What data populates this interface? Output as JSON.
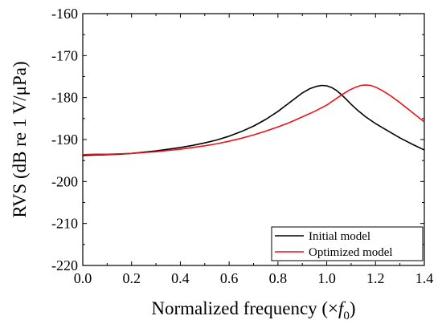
{
  "chart_data": {
    "type": "line",
    "title": "",
    "xlabel_main": "Normalized frequency (×",
    "xlabel_var": "f",
    "xlabel_sub": "0",
    "xlabel_close": ")",
    "ylabel": "RVS (dB re 1 V/μPa)",
    "xlim": [
      0.0,
      1.4
    ],
    "ylim": [
      -220,
      -160
    ],
    "x_ticks": [
      "0.0",
      "0.2",
      "0.4",
      "0.6",
      "0.8",
      "1.0",
      "1.2",
      "1.4"
    ],
    "y_ticks": [
      "-160",
      "-170",
      "-180",
      "-190",
      "-200",
      "-210",
      "-220"
    ],
    "grid": false,
    "legend_position": "bottom-right",
    "series": [
      {
        "name": "Initial model",
        "color": "#000000",
        "x": [
          0.0,
          0.05,
          0.1,
          0.15,
          0.2,
          0.25,
          0.3,
          0.35,
          0.4,
          0.45,
          0.5,
          0.55,
          0.6,
          0.65,
          0.7,
          0.75,
          0.8,
          0.85,
          0.9,
          0.93,
          0.96,
          0.98,
          1.0,
          1.02,
          1.04,
          1.06,
          1.08,
          1.1,
          1.13,
          1.16,
          1.2,
          1.25,
          1.3,
          1.35,
          1.4
        ],
        "y": [
          -193.8,
          -193.7,
          -193.6,
          -193.5,
          -193.3,
          -193.0,
          -192.7,
          -192.3,
          -191.9,
          -191.4,
          -190.8,
          -190.1,
          -189.2,
          -188.1,
          -186.8,
          -185.2,
          -183.3,
          -181.1,
          -178.9,
          -177.9,
          -177.3,
          -177.1,
          -177.2,
          -177.6,
          -178.3,
          -179.3,
          -180.4,
          -181.6,
          -183.2,
          -184.6,
          -186.2,
          -187.9,
          -189.6,
          -191.1,
          -192.5
        ]
      },
      {
        "name": "Optimized model",
        "color": "#e8141b",
        "x": [
          0.0,
          0.05,
          0.1,
          0.15,
          0.2,
          0.25,
          0.3,
          0.35,
          0.4,
          0.45,
          0.5,
          0.55,
          0.6,
          0.65,
          0.7,
          0.75,
          0.8,
          0.85,
          0.9,
          0.95,
          1.0,
          1.03,
          1.06,
          1.09,
          1.12,
          1.14,
          1.16,
          1.18,
          1.2,
          1.23,
          1.26,
          1.3,
          1.35,
          1.4
        ],
        "y": [
          -193.6,
          -193.5,
          -193.5,
          -193.4,
          -193.3,
          -193.1,
          -192.9,
          -192.6,
          -192.3,
          -191.9,
          -191.5,
          -191.0,
          -190.4,
          -189.7,
          -188.9,
          -188.0,
          -187.0,
          -185.9,
          -184.6,
          -183.3,
          -181.8,
          -180.6,
          -179.4,
          -178.3,
          -177.5,
          -177.1,
          -177.0,
          -177.1,
          -177.5,
          -178.4,
          -179.5,
          -181.2,
          -183.5,
          -185.8
        ]
      }
    ]
  }
}
